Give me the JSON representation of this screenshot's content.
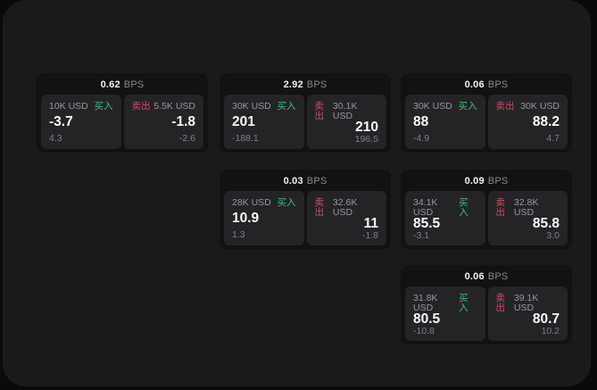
{
  "labels": {
    "unit": "BPS",
    "buy": "买入",
    "sell": "卖出"
  },
  "colors": {
    "buy_green": "#3fbf7d",
    "sell_red": "#d24b60",
    "panel_bg": "#1a1a1b",
    "card_bg": "#121213",
    "subpanel_bg": "#242427"
  },
  "cards": [
    {
      "row": 0,
      "col": 0,
      "bps": "0.62",
      "buy": {
        "amount": "10K USD",
        "value": "-3.7",
        "sub": "4.3"
      },
      "sell": {
        "amount": "5.5K USD",
        "value": "-1.8",
        "sub": "-2.6"
      }
    },
    {
      "row": 0,
      "col": 1,
      "bps": "2.92",
      "buy": {
        "amount": "30K USD",
        "value": "201",
        "sub": "-188.1"
      },
      "sell": {
        "amount": "30.1K USD",
        "value": "210",
        "sub": "196.5"
      }
    },
    {
      "row": 0,
      "col": 2,
      "bps": "0.06",
      "buy": {
        "amount": "30K USD",
        "value": "88",
        "sub": "-4.9"
      },
      "sell": {
        "amount": "30K USD",
        "value": "88.2",
        "sub": "4.7"
      }
    },
    {
      "row": 1,
      "col": 1,
      "bps": "0.03",
      "buy": {
        "amount": "28K USD",
        "value": "10.9",
        "sub": "1.3"
      },
      "sell": {
        "amount": "32.6K USD",
        "value": "11",
        "sub": "-1.8"
      }
    },
    {
      "row": 1,
      "col": 2,
      "bps": "0.09",
      "buy": {
        "amount": "34.1K USD",
        "value": "85.5",
        "sub": "-3.1"
      },
      "sell": {
        "amount": "32.8K USD",
        "value": "85.8",
        "sub": "3.0"
      }
    },
    {
      "row": 2,
      "col": 2,
      "bps": "0.06",
      "buy": {
        "amount": "31.8K USD",
        "value": "80.5",
        "sub": "-10.8"
      },
      "sell": {
        "amount": "39.1K USD",
        "value": "80.7",
        "sub": "10.2"
      }
    }
  ]
}
